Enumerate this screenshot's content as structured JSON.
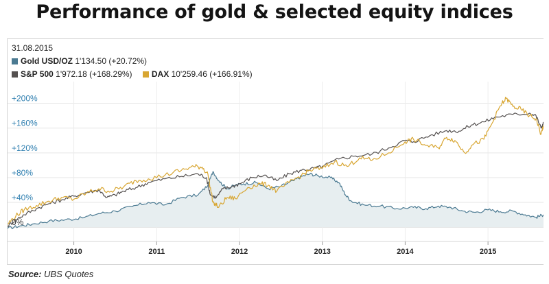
{
  "title": "Performance of gold & selected equity indices",
  "source_label": "Source:",
  "source_value": "UBS Quotes",
  "legend": {
    "date": "31.08.2015",
    "items": [
      {
        "name": "Gold USD/OZ",
        "value": "1'134.50 (+20.72%)",
        "color": "#4b7a92"
      },
      {
        "name": "S&P 500",
        "value": "1'972.18 (+168.29%)",
        "color": "#555150"
      },
      {
        "name": "DAX",
        "value": "10'259.46 (+166.91%)",
        "color": "#d8a632"
      }
    ]
  },
  "chart_data": {
    "type": "line",
    "title": "Performance of gold & selected equity indices",
    "xlabel": "",
    "ylabel": "",
    "xlim": [
      2009.2,
      2015.67
    ],
    "ylim": [
      -22,
      235
    ],
    "x_ticks": [
      2010,
      2011,
      2012,
      2013,
      2014,
      2015
    ],
    "x_tick_labels": [
      "2010",
      "2011",
      "2012",
      "2013",
      "2014",
      "2015"
    ],
    "y_ticks": [
      0,
      40,
      80,
      120,
      160,
      200
    ],
    "y_tick_labels": [
      "0%",
      "+40%",
      "+80%",
      "+120%",
      "+160%",
      "+200%"
    ],
    "grid": true,
    "series": [
      {
        "name": "Gold USD/OZ",
        "color": "#4b7a92",
        "fill": "#e7eef0",
        "x": [
          2009.2,
          2009.35,
          2009.5,
          2009.7,
          2009.9,
          2010.1,
          2010.3,
          2010.5,
          2010.7,
          2010.9,
          2011.1,
          2011.3,
          2011.5,
          2011.62,
          2011.68,
          2011.75,
          2011.85,
          2011.95,
          2012.05,
          2012.2,
          2012.35,
          2012.5,
          2012.65,
          2012.75,
          2012.85,
          2012.95,
          2013.1,
          2013.2,
          2013.28,
          2013.35,
          2013.5,
          2013.7,
          2013.9,
          2014.1,
          2014.25,
          2014.4,
          2014.55,
          2014.7,
          2014.85,
          2015.0,
          2015.15,
          2015.3,
          2015.45,
          2015.58,
          2015.67
        ],
        "values": [
          -2,
          2,
          5,
          10,
          12,
          15,
          22,
          26,
          33,
          40,
          36,
          48,
          52,
          68,
          90,
          75,
          62,
          68,
          70,
          72,
          62,
          66,
          75,
          82,
          86,
          83,
          80,
          72,
          52,
          42,
          36,
          34,
          30,
          32,
          30,
          34,
          32,
          26,
          24,
          28,
          25,
          26,
          20,
          16,
          20
        ]
      },
      {
        "name": "S&P 500",
        "color": "#555150",
        "x": [
          2009.2,
          2009.3,
          2009.4,
          2009.55,
          2009.7,
          2009.85,
          2010.0,
          2010.15,
          2010.3,
          2010.4,
          2010.5,
          2010.6,
          2010.75,
          2010.9,
          2011.1,
          2011.3,
          2011.5,
          2011.6,
          2011.65,
          2011.72,
          2011.8,
          2011.9,
          2012.0,
          2012.15,
          2012.3,
          2012.45,
          2012.6,
          2012.75,
          2012.9,
          2013.0,
          2013.2,
          2013.4,
          2013.6,
          2013.8,
          2014.0,
          2014.1,
          2014.3,
          2014.5,
          2014.65,
          2014.8,
          2014.95,
          2015.1,
          2015.3,
          2015.5,
          2015.58,
          2015.64,
          2015.67
        ],
        "values": [
          2,
          12,
          20,
          30,
          38,
          44,
          50,
          56,
          60,
          48,
          52,
          58,
          64,
          72,
          78,
          82,
          86,
          80,
          52,
          48,
          62,
          65,
          70,
          80,
          84,
          75,
          86,
          92,
          95,
          98,
          110,
          115,
          118,
          128,
          140,
          138,
          148,
          156,
          155,
          165,
          170,
          178,
          182,
          184,
          180,
          160,
          168
        ]
      },
      {
        "name": "DAX",
        "color": "#d8a632",
        "x": [
          2009.2,
          2009.3,
          2009.4,
          2009.55,
          2009.7,
          2009.85,
          2010.0,
          2010.15,
          2010.3,
          2010.45,
          2010.6,
          2010.75,
          2010.9,
          2011.1,
          2011.3,
          2011.45,
          2011.55,
          2011.62,
          2011.68,
          2011.75,
          2011.85,
          2011.95,
          2012.1,
          2012.25,
          2012.35,
          2012.45,
          2012.6,
          2012.75,
          2012.85,
          2013.0,
          2013.15,
          2013.3,
          2013.45,
          2013.6,
          2013.8,
          2014.0,
          2014.1,
          2014.25,
          2014.4,
          2014.5,
          2014.6,
          2014.72,
          2014.8,
          2014.95,
          2015.05,
          2015.15,
          2015.22,
          2015.3,
          2015.4,
          2015.5,
          2015.58,
          2015.64,
          2015.67
        ],
        "values": [
          5,
          18,
          28,
          35,
          42,
          48,
          45,
          55,
          62,
          58,
          65,
          75,
          78,
          84,
          92,
          98,
          97,
          85,
          40,
          32,
          48,
          46,
          64,
          70,
          68,
          58,
          72,
          84,
          92,
          95,
          106,
          98,
          112,
          108,
          120,
          138,
          142,
          132,
          128,
          145,
          140,
          120,
          132,
          142,
          168,
          196,
          208,
          195,
          190,
          180,
          175,
          150,
          165
        ]
      }
    ]
  }
}
